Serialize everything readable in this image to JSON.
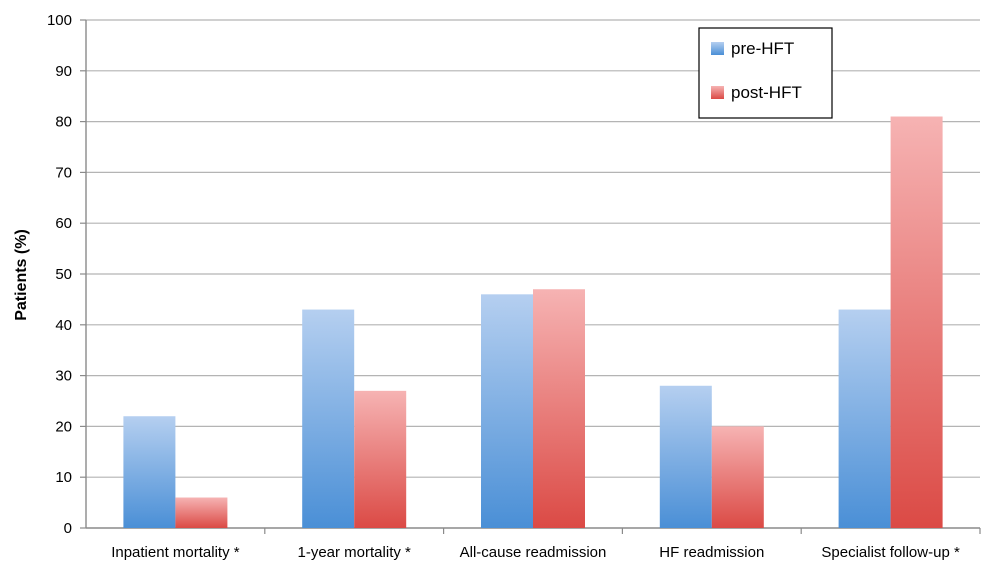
{
  "chart_data": {
    "type": "bar",
    "title": "",
    "xlabel": "",
    "ylabel": "Patients (%)",
    "ylim": [
      0,
      100
    ],
    "yticks": [
      0,
      10,
      20,
      30,
      40,
      50,
      60,
      70,
      80,
      90,
      100
    ],
    "grid": true,
    "legend_position": "top-right",
    "categories": [
      "Inpatient mortality *",
      "1-year mortality *",
      "All-cause readmission",
      "HF readmission",
      "Specialist follow-up *"
    ],
    "series": [
      {
        "name": "pre-HFT",
        "values": [
          22,
          43,
          46,
          28,
          43
        ],
        "color_top": "#b5cff0",
        "color_bottom": "#4a8fd6"
      },
      {
        "name": "post-HFT",
        "values": [
          6,
          27,
          47,
          20,
          81
        ],
        "color_top": "#f6b3b3",
        "color_bottom": "#db4a45"
      }
    ]
  }
}
